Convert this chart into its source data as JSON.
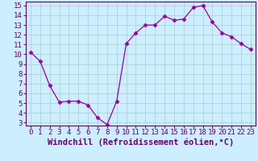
{
  "x": [
    0,
    1,
    2,
    3,
    4,
    5,
    6,
    7,
    8,
    9,
    10,
    11,
    12,
    13,
    14,
    15,
    16,
    17,
    18,
    19,
    20,
    21,
    22,
    23
  ],
  "y": [
    10.2,
    9.3,
    6.8,
    5.1,
    5.2,
    5.2,
    4.8,
    3.5,
    2.8,
    5.2,
    11.1,
    12.2,
    13.0,
    13.0,
    13.9,
    13.5,
    13.6,
    14.8,
    15.0,
    13.3,
    12.2,
    11.8,
    11.1,
    10.5
  ],
  "xlim": [
    -0.5,
    23.5
  ],
  "ylim": [
    2.7,
    15.4
  ],
  "xticks": [
    0,
    1,
    2,
    3,
    4,
    5,
    6,
    7,
    8,
    9,
    10,
    11,
    12,
    13,
    14,
    15,
    16,
    17,
    18,
    19,
    20,
    21,
    22,
    23
  ],
  "yticks": [
    3,
    4,
    5,
    6,
    7,
    8,
    9,
    10,
    11,
    12,
    13,
    14,
    15
  ],
  "xlabel": "Windchill (Refroidissement éolien,°C)",
  "line_color": "#990099",
  "marker": "D",
  "marker_size": 2.5,
  "bg_color": "#cceeff",
  "grid_color": "#aacccc",
  "tick_label_fontsize": 6.5,
  "xlabel_fontsize": 7.5
}
